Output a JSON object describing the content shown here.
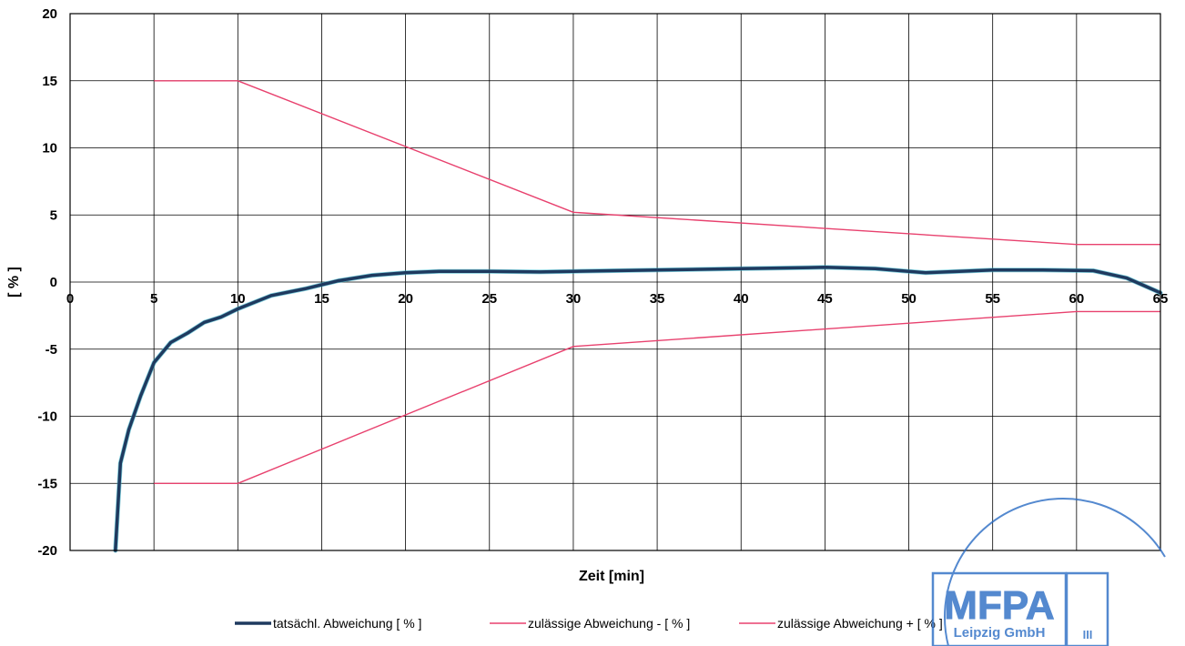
{
  "chart_data": {
    "type": "line",
    "title": "",
    "xlabel": "Zeit [min]",
    "ylabel": "[ % ]",
    "xlim": [
      0,
      65
    ],
    "ylim": [
      -20,
      20
    ],
    "x_ticks": [
      0,
      5,
      10,
      15,
      20,
      25,
      30,
      35,
      40,
      45,
      50,
      55,
      60,
      65
    ],
    "y_ticks": [
      20,
      15,
      10,
      5,
      0,
      -5,
      -10,
      -15,
      -20
    ],
    "grid": true,
    "legend_position": "bottom",
    "series": [
      {
        "name": "tatsächl. Abweichung [ % ]",
        "color": "#1f3a5f",
        "points": [
          [
            2.7,
            -20
          ],
          [
            3.0,
            -13.5
          ],
          [
            3.5,
            -11
          ],
          [
            4.2,
            -8.5
          ],
          [
            5.0,
            -6
          ],
          [
            6.0,
            -4.5
          ],
          [
            7.0,
            -3.8
          ],
          [
            8.0,
            -3.0
          ],
          [
            9.0,
            -2.6
          ],
          [
            10.0,
            -2.0
          ],
          [
            12.0,
            -1.0
          ],
          [
            14.0,
            -0.5
          ],
          [
            16.0,
            0.1
          ],
          [
            18.0,
            0.5
          ],
          [
            20.0,
            0.7
          ],
          [
            22.0,
            0.8
          ],
          [
            25.0,
            0.8
          ],
          [
            28.0,
            0.75
          ],
          [
            30.0,
            0.8
          ],
          [
            35.0,
            0.9
          ],
          [
            40.0,
            1.0
          ],
          [
            45.0,
            1.1
          ],
          [
            48.0,
            1.0
          ],
          [
            51.0,
            0.7
          ],
          [
            55.0,
            0.9
          ],
          [
            58.0,
            0.9
          ],
          [
            61.0,
            0.85
          ],
          [
            63.0,
            0.3
          ],
          [
            65.0,
            -0.8
          ]
        ]
      },
      {
        "name": "zulässige Abweichung - [ % ]",
        "color": "#e8416e",
        "points": [
          [
            5,
            -15
          ],
          [
            10,
            -15
          ],
          [
            30,
            -4.8
          ],
          [
            60,
            -2.2
          ],
          [
            65,
            -2.2
          ]
        ]
      },
      {
        "name": "zulässige Abweichung + [ % ]",
        "color": "#e8416e",
        "points": [
          [
            5,
            15
          ],
          [
            10,
            15
          ],
          [
            30,
            5.2
          ],
          [
            60,
            2.8
          ],
          [
            65,
            2.8
          ]
        ]
      }
    ]
  },
  "stamp": {
    "logo_text": "MFPA",
    "company_text": "Leipzig GmbH",
    "roman": "III",
    "color": "#2a6cc4"
  }
}
